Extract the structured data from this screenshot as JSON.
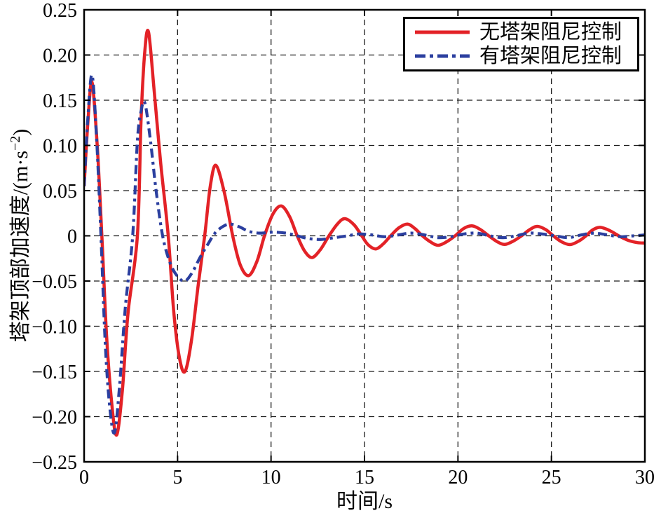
{
  "figure": {
    "background": "#ffffff",
    "frame_color": "#000000",
    "grid_color": "#1a1a1a"
  },
  "chart_data": {
    "type": "line",
    "title": "",
    "xlabel": "时间/s",
    "ylabel": "塔架顶部加速度/(m·s−2)",
    "ylabel_parts": {
      "main": "塔架顶部加速度/(m·s",
      "sup": "−2",
      "close": ")"
    },
    "xlim": [
      0,
      30
    ],
    "ylim": [
      -0.25,
      0.25
    ],
    "x_ticks": [
      0,
      5,
      10,
      15,
      20,
      25,
      30
    ],
    "x_tick_labels": [
      "0",
      "5",
      "10",
      "15",
      "20",
      "25",
      "30"
    ],
    "y_ticks": [
      -0.25,
      -0.2,
      -0.15,
      -0.1,
      -0.05,
      0,
      0.05,
      0.1,
      0.15,
      0.2,
      0.25
    ],
    "y_tick_labels": [
      "−0.25",
      "−0.20",
      "−0.15",
      "−0.10",
      "−0.05",
      "0",
      "0.05",
      "0.10",
      "0.15",
      "0.20",
      "0.25"
    ],
    "grid": "dashed",
    "legend_position": "top-right",
    "series": [
      {
        "name": "无塔架阻尼控制",
        "color": "#e32227",
        "style": "solid",
        "width": 4.5,
        "points": [
          [
            0,
            0.055
          ],
          [
            0.2,
            0.125
          ],
          [
            0.42,
            0.17
          ],
          [
            0.7,
            0.1
          ],
          [
            0.95,
            0
          ],
          [
            1.2,
            -0.11
          ],
          [
            1.5,
            -0.19
          ],
          [
            1.75,
            -0.22
          ],
          [
            2.05,
            -0.17
          ],
          [
            2.35,
            -0.085
          ],
          [
            2.85,
            0
          ],
          [
            3.05,
            0.13
          ],
          [
            3.25,
            0.205
          ],
          [
            3.45,
            0.225
          ],
          [
            3.75,
            0.16
          ],
          [
            4.1,
            0.08
          ],
          [
            4.5,
            0
          ],
          [
            4.8,
            -0.085
          ],
          [
            5.1,
            -0.135
          ],
          [
            5.4,
            -0.15
          ],
          [
            5.75,
            -0.115
          ],
          [
            6.1,
            -0.055
          ],
          [
            6.45,
            0
          ],
          [
            6.75,
            0.055
          ],
          [
            7.05,
            0.078
          ],
          [
            7.5,
            0.048
          ],
          [
            7.95,
            0
          ],
          [
            8.35,
            -0.032
          ],
          [
            8.8,
            -0.044
          ],
          [
            9.25,
            -0.028
          ],
          [
            9.65,
            0
          ],
          [
            10.1,
            0.024
          ],
          [
            10.55,
            0.033
          ],
          [
            11,
            0.021
          ],
          [
            11.4,
            0
          ],
          [
            11.8,
            -0.017
          ],
          [
            12.2,
            -0.024
          ],
          [
            12.65,
            -0.015
          ],
          [
            13.1,
            0
          ],
          [
            13.55,
            0.013
          ],
          [
            13.95,
            0.019
          ],
          [
            14.45,
            0.012
          ],
          [
            14.85,
            0
          ],
          [
            15.2,
            -0.01
          ],
          [
            15.6,
            -0.0145
          ],
          [
            16,
            -0.009
          ],
          [
            16.4,
            0
          ],
          [
            16.85,
            0.009
          ],
          [
            17.3,
            0.013
          ],
          [
            17.7,
            0.008
          ],
          [
            18.1,
            0
          ],
          [
            18.55,
            -0.007
          ],
          [
            18.95,
            -0.0105
          ],
          [
            19.4,
            -0.0065
          ],
          [
            19.85,
            0
          ],
          [
            20.3,
            0.008
          ],
          [
            20.75,
            0.011
          ],
          [
            21.2,
            0.007
          ],
          [
            21.65,
            0
          ],
          [
            22.1,
            -0.0065
          ],
          [
            22.5,
            -0.0095
          ],
          [
            22.95,
            -0.006
          ],
          [
            23.4,
            0
          ],
          [
            23.85,
            0.007
          ],
          [
            24.25,
            0.0105
          ],
          [
            24.7,
            0.0068
          ],
          [
            25.1,
            0
          ],
          [
            25.55,
            -0.0067
          ],
          [
            26,
            -0.0097
          ],
          [
            26.45,
            -0.006
          ],
          [
            26.85,
            0
          ],
          [
            27.2,
            0.0064
          ],
          [
            27.6,
            0.0094
          ],
          [
            28.1,
            0.006
          ],
          [
            28.6,
            0
          ],
          [
            29.1,
            -0.005
          ],
          [
            29.6,
            -0.0075
          ],
          [
            30,
            -0.008
          ]
        ]
      },
      {
        "name": "有塔架阻尼控制",
        "color": "#2b3f9f",
        "style": "dash-dot",
        "width": 4.2,
        "points": [
          [
            0,
            0.055
          ],
          [
            0.2,
            0.13
          ],
          [
            0.42,
            0.178
          ],
          [
            0.65,
            0.115
          ],
          [
            0.9,
            0
          ],
          [
            1.12,
            -0.115
          ],
          [
            1.35,
            -0.185
          ],
          [
            1.62,
            -0.218
          ],
          [
            1.9,
            -0.165
          ],
          [
            2.2,
            -0.08
          ],
          [
            2.6,
            0
          ],
          [
            2.85,
            0.105
          ],
          [
            3.05,
            0.138
          ],
          [
            3.25,
            0.147
          ],
          [
            3.55,
            0.105
          ],
          [
            3.85,
            0.05
          ],
          [
            4.2,
            0
          ],
          [
            4.6,
            -0.03
          ],
          [
            5,
            -0.045
          ],
          [
            5.4,
            -0.05
          ],
          [
            5.8,
            -0.04
          ],
          [
            6.2,
            -0.024
          ],
          [
            6.6,
            -0.01
          ],
          [
            7,
            0.003
          ],
          [
            7.4,
            0.01
          ],
          [
            7.8,
            0.013
          ],
          [
            8.3,
            0.01
          ],
          [
            8.8,
            0.005
          ],
          [
            9.4,
            0.003
          ],
          [
            10.1,
            0.004
          ],
          [
            10.8,
            0.003
          ],
          [
            11.4,
            0
          ],
          [
            12,
            -0.003
          ],
          [
            12.7,
            -0.004
          ],
          [
            13.4,
            -0.002
          ],
          [
            14.1,
            0
          ],
          [
            14.7,
            0.002
          ],
          [
            15.4,
            0.001
          ],
          [
            16.1,
            -0.001
          ],
          [
            16.8,
            0.001
          ],
          [
            17.5,
            0.003
          ],
          [
            18.2,
            0.001
          ],
          [
            18.9,
            -0.002
          ],
          [
            19.6,
            -0.001
          ],
          [
            20.3,
            0.002
          ],
          [
            21,
            0.003
          ],
          [
            21.7,
            0
          ],
          [
            22.4,
            -0.002
          ],
          [
            23.1,
            0
          ],
          [
            23.8,
            0.003
          ],
          [
            24.5,
            0.002
          ],
          [
            25.2,
            0
          ],
          [
            25.9,
            -0.002
          ],
          [
            26.6,
            0.001
          ],
          [
            27.3,
            0.003
          ],
          [
            28,
            0.001
          ],
          [
            28.7,
            -0.001
          ],
          [
            29.4,
            0
          ],
          [
            30,
            0.001
          ]
        ]
      }
    ]
  },
  "legend": {
    "items": [
      {
        "label": "无塔架阻尼控制",
        "color": "#e32227",
        "style": "solid"
      },
      {
        "label": "有塔架阻尼控制",
        "color": "#2b3f9f",
        "style": "dash-dot"
      }
    ]
  }
}
